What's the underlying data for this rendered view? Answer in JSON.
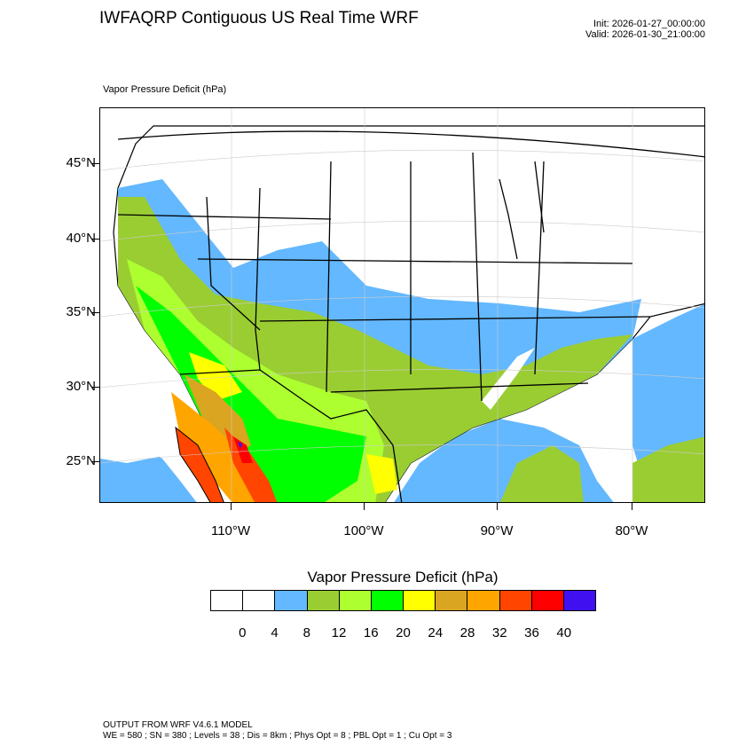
{
  "header": {
    "title": "IWFAQRP Contiguous US Real Time WRF",
    "init": "Init: 2026-01-27_00:00:00",
    "valid": "Valid: 2026-01-30_21:00:00",
    "subtitle": "Vapor Pressure Deficit   (hPa)"
  },
  "map": {
    "lat_labels": [
      "45°N",
      "40°N",
      "35°N",
      "30°N",
      "25°N"
    ],
    "lon_labels": [
      "110°W",
      "100°W",
      "90°W",
      "80°W"
    ]
  },
  "colorbar": {
    "title": "Vapor Pressure Deficit  (hPa)",
    "labels": [
      "0",
      "4",
      "8",
      "12",
      "16",
      "20",
      "24",
      "28",
      "32",
      "36",
      "40"
    ],
    "colors": [
      "#ffffff",
      "#ffffff",
      "#63b8ff",
      "#9acd32",
      "#adff2f",
      "#00ff00",
      "#ffff00",
      "#daa520",
      "#ffa500",
      "#ff4500",
      "#ff0000",
      "#4010f0"
    ]
  },
  "footer": {
    "line1": "OUTPUT FROM WRF V4.6.1 MODEL",
    "line2": "WE = 580 ; SN = 380 ; Levels = 38 ; Dis = 8km ; Phys Opt = 8 ; PBL Opt = 1 ; Cu Opt = 3"
  }
}
